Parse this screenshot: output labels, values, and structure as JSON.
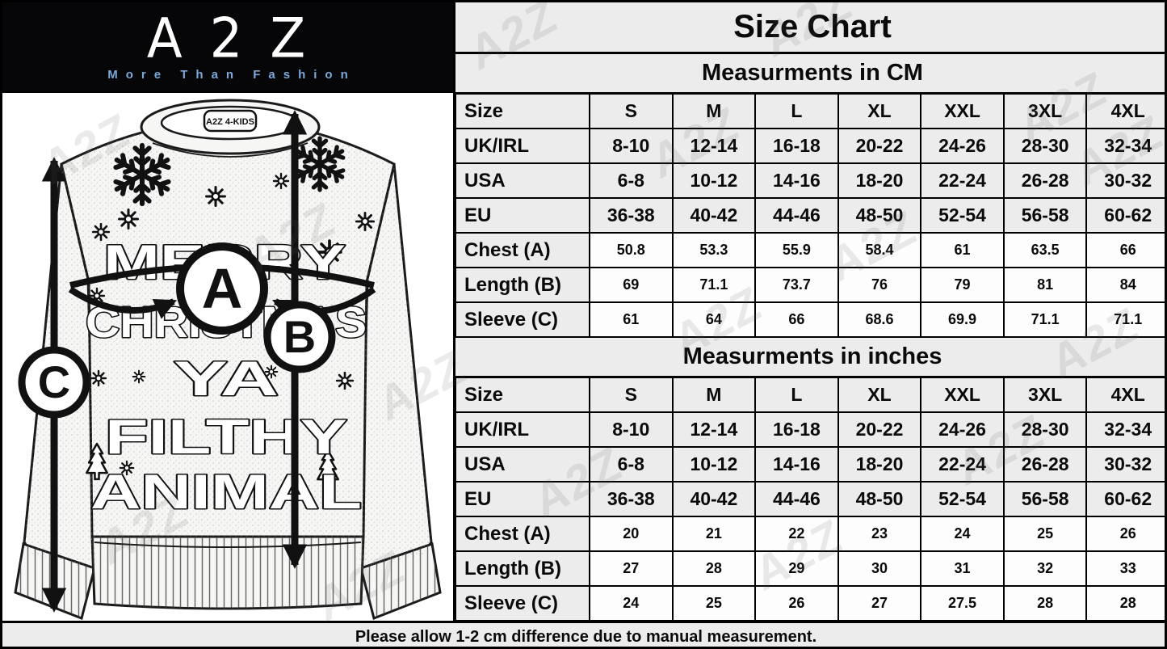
{
  "brand": {
    "logo": "A2Z",
    "tagline": "More Than Fashion",
    "neck_label": "A2Z 4-KIDS"
  },
  "sweater": {
    "print_lines": [
      "MERRY",
      "CHRISTMAS",
      "YA",
      "FILTHY",
      "ANIMAL"
    ],
    "measure_markers": [
      "A",
      "B",
      "C"
    ]
  },
  "watermark": {
    "text": "A2Z"
  },
  "size_chart": {
    "title": "Size Chart",
    "footnote": "Please allow 1-2 cm difference due to manual measurement."
  },
  "chart_data": [
    {
      "type": "table",
      "title": "Measurments in CM",
      "columns": [
        "Size",
        "S",
        "M",
        "L",
        "XL",
        "XXL",
        "3XL",
        "4XL"
      ],
      "rows": [
        {
          "label": "UK/IRL",
          "kind": "size",
          "values": [
            "8-10",
            "12-14",
            "16-18",
            "20-22",
            "24-26",
            "28-30",
            "32-34"
          ]
        },
        {
          "label": "USA",
          "kind": "size",
          "values": [
            "6-8",
            "10-12",
            "14-16",
            "18-20",
            "22-24",
            "26-28",
            "30-32"
          ]
        },
        {
          "label": "EU",
          "kind": "size",
          "values": [
            "36-38",
            "40-42",
            "44-46",
            "48-50",
            "52-54",
            "56-58",
            "60-62"
          ]
        },
        {
          "label": "Chest (A)",
          "kind": "measurement",
          "values": [
            "50.8",
            "53.3",
            "55.9",
            "58.4",
            "61",
            "63.5",
            "66"
          ]
        },
        {
          "label": "Length (B)",
          "kind": "measurement",
          "values": [
            "69",
            "71.1",
            "73.7",
            "76",
            "79",
            "81",
            "84"
          ]
        },
        {
          "label": "Sleeve (C)",
          "kind": "measurement",
          "values": [
            "61",
            "64",
            "66",
            "68.6",
            "69.9",
            "71.1",
            "71.1"
          ]
        }
      ]
    },
    {
      "type": "table",
      "title": "Measurments in inches",
      "columns": [
        "Size",
        "S",
        "M",
        "L",
        "XL",
        "XXL",
        "3XL",
        "4XL"
      ],
      "rows": [
        {
          "label": "UK/IRL",
          "kind": "size",
          "values": [
            "8-10",
            "12-14",
            "16-18",
            "20-22",
            "24-26",
            "28-30",
            "32-34"
          ]
        },
        {
          "label": "USA",
          "kind": "size",
          "values": [
            "6-8",
            "10-12",
            "14-16",
            "18-20",
            "22-24",
            "26-28",
            "30-32"
          ]
        },
        {
          "label": "EU",
          "kind": "size",
          "values": [
            "36-38",
            "40-42",
            "44-46",
            "48-50",
            "52-54",
            "56-58",
            "60-62"
          ]
        },
        {
          "label": "Chest (A)",
          "kind": "measurement",
          "values": [
            "20",
            "21",
            "22",
            "23",
            "24",
            "25",
            "26"
          ]
        },
        {
          "label": "Length (B)",
          "kind": "measurement",
          "values": [
            "27",
            "28",
            "29",
            "30",
            "31",
            "32",
            "33"
          ]
        },
        {
          "label": "Sleeve (C)",
          "kind": "measurement",
          "values": [
            "24",
            "25",
            "26",
            "27",
            "27.5",
            "28",
            "28"
          ]
        }
      ]
    }
  ],
  "colors": {
    "logo_bg": "#060608",
    "tagline_blue": "#7aa9dc",
    "band_gray": "#ececec",
    "cell_white": "#fdfdfd",
    "line_black": "#000000"
  }
}
